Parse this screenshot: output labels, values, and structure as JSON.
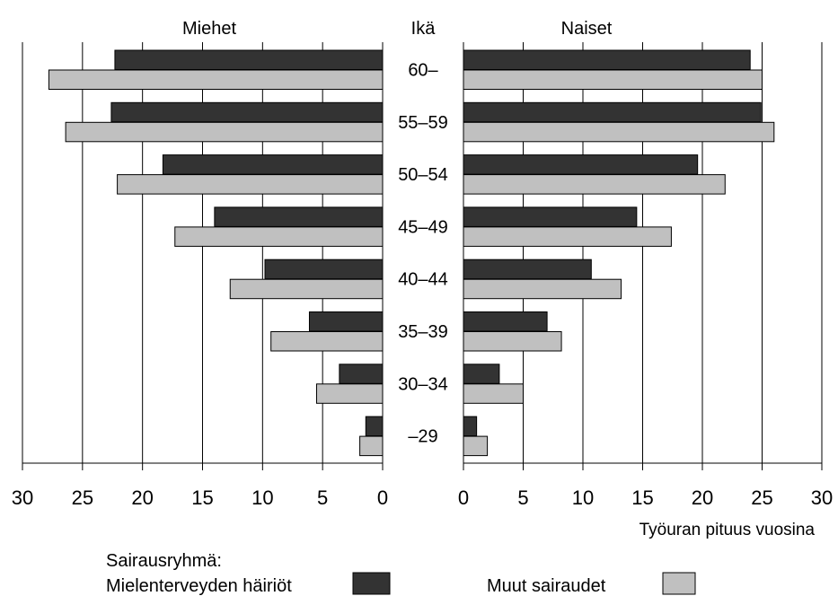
{
  "chart_data": {
    "type": "bar",
    "orientation": "horizontal",
    "layout": "population-pyramid",
    "panels": [
      {
        "name": "Miehet",
        "direction": "left"
      },
      {
        "name": "Naiset",
        "direction": "right"
      }
    ],
    "category_header": "Ikä",
    "categories": [
      "60–",
      "55–59",
      "50–54",
      "45–49",
      "40–44",
      "35–39",
      "30–34",
      "–29"
    ],
    "series": [
      {
        "name": "Mielenterveyden häiriöt",
        "color": "#333333",
        "values": {
          "Miehet": [
            22.3,
            22.6,
            18.3,
            14.0,
            9.8,
            6.1,
            3.6,
            1.4
          ],
          "Naiset": [
            24.0,
            24.9,
            19.6,
            14.5,
            10.7,
            7.0,
            3.0,
            1.1
          ]
        }
      },
      {
        "name": "Muut sairaudet",
        "color": "#c0c0c0",
        "values": {
          "Miehet": [
            27.8,
            26.4,
            22.1,
            17.3,
            12.7,
            9.3,
            5.5,
            1.9
          ],
          "Naiset": [
            25.0,
            26.0,
            21.9,
            17.4,
            13.2,
            8.2,
            5.0,
            2.0
          ]
        }
      }
    ],
    "xlim": [
      0,
      30
    ],
    "xticks": [
      "0",
      "5",
      "10",
      "15",
      "20",
      "25",
      "30"
    ],
    "xticks_left": [
      "30",
      "25",
      "20",
      "15",
      "10",
      "5",
      "0"
    ],
    "xlabel": "Työuran pituus vuosina",
    "grid": true,
    "legend": {
      "title": "Sairausryhmä:",
      "placement": "bottom",
      "items": [
        "Mielenterveyden häiriöt",
        "Muut sairaudet"
      ]
    }
  }
}
